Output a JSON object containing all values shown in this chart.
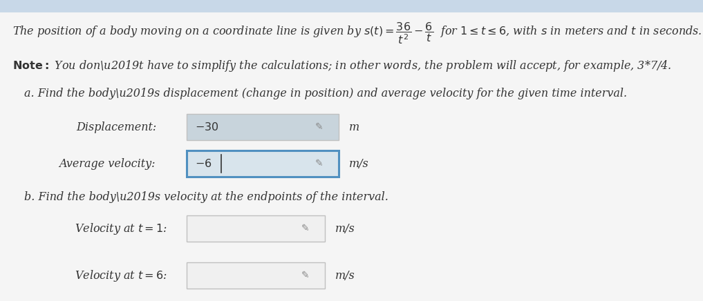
{
  "page_bg": "#e8e8e8",
  "header_bar_color": "#c8d8e8",
  "content_bg": "#efefef",
  "title_text": "The position of a body moving on a coordinate line is given by $s(t) = \\dfrac{36}{t^2} - \\dfrac{6}{t}$  for $1 \\leq t \\leq 6$, with $s$ in meters and $t$ in seconds.",
  "note_text": "You don’t have to simplify the calculations; in other words, the problem will accept, for example, 3*7/4.",
  "part_a_text": "a. Find the body’s displacement (change in position) and average velocity for the given time interval.",
  "part_b_text": "b. Find the body’s velocity at the endpoints of the interval.",
  "disp_label": "Displacement:",
  "disp_value": "-30",
  "disp_unit": "m",
  "avg_label": "Average velocity:",
  "avg_value": "-6",
  "avg_unit": "m/s",
  "vel1_label": "Velocity at $t = 1$:",
  "vel1_unit": "m/s",
  "vel6_label": "Velocity at $t = 6$:",
  "vel6_unit": "m/s",
  "box_fill_disp": "#c8d4dc",
  "box_fill_avg": "#d8e4ec",
  "box_fill_vel": "#f0f0f0",
  "box_outline_active": "#5090c0",
  "box_outline_normal": "#c0c0c0",
  "text_color": "#333333",
  "note_bold_color": "#111111",
  "font_size": 11.5
}
